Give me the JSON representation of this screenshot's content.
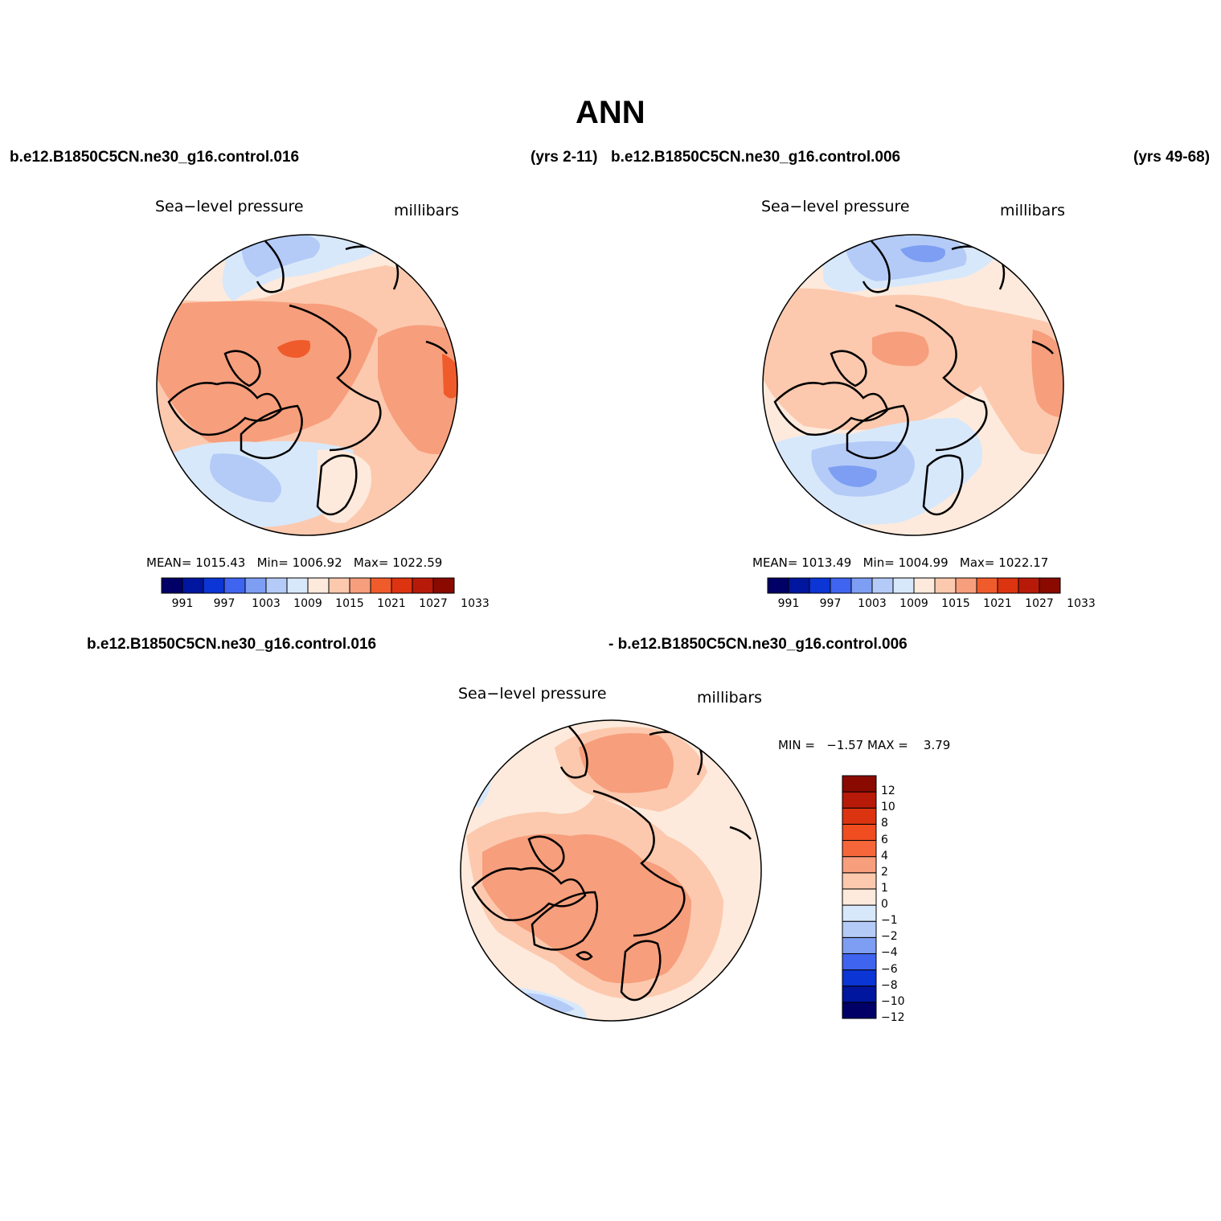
{
  "title": "ANN",
  "header": {
    "case1": "b.e12.B1850C5CN.ne30_g16.control.016",
    "case1_years": "(yrs 2-11)",
    "case2": "b.e12.B1850C5CN.ne30_g16.control.006",
    "case2_years": "(yrs 49-68)"
  },
  "colors": {
    "abs": [
      "#000066",
      "#00169e",
      "#0b35d4",
      "#3f64f0",
      "#7d9ef2",
      "#b4cbf7",
      "#d8e8fb",
      "#fdeadc",
      "#fcc9ae",
      "#f79e7c",
      "#f05b2b",
      "#dc3410",
      "#b81a0a",
      "#8a0a00"
    ],
    "diff": [
      "#000066",
      "#00169e",
      "#0b35d4",
      "#3f64f0",
      "#7d9ef2",
      "#b4cbf7",
      "#d8e8fb",
      "#fdeadc",
      "#fcc9ae",
      "#f79e7c",
      "#f5673a",
      "#f04d20",
      "#dc3410",
      "#b81a0a",
      "#8a0a00"
    ]
  },
  "panels": [
    {
      "variable": "Sea−level pressure",
      "units": "millibars",
      "stats": {
        "mean_label": "MEAN=",
        "mean": "1015.43",
        "min_label": "Min=",
        "min": "1006.92",
        "max_label": "Max=",
        "max": "1022.59"
      },
      "colorbar_ticks": [
        "991",
        "997",
        "1003",
        "1009",
        "1015",
        "1021",
        "1027",
        "1033"
      ]
    },
    {
      "variable": "Sea−level pressure",
      "units": "millibars",
      "stats": {
        "mean_label": "MEAN=",
        "mean": "1013.49",
        "min_label": "Min=",
        "min": "1004.99",
        "max_label": "Max=",
        "max": "1022.17"
      },
      "colorbar_ticks": [
        "991",
        "997",
        "1003",
        "1009",
        "1015",
        "1021",
        "1027",
        "1033"
      ]
    }
  ],
  "difference": {
    "line1": "b.e12.B1850C5CN.ne30_g16.control.016",
    "line2": "- b.e12.B1850C5CN.ne30_g16.control.006",
    "variable": "Sea−level pressure",
    "units": "millibars",
    "stats": {
      "min_label": "MIN =",
      "min": "−1.57",
      "max_label": "MAX =",
      "max": "3.79"
    },
    "colorbar_ticks": [
      "12",
      "10",
      "8",
      "6",
      "4",
      "2",
      "1",
      "0",
      "−1",
      "−2",
      "−4",
      "−6",
      "−8",
      "−10",
      "−12"
    ]
  }
}
